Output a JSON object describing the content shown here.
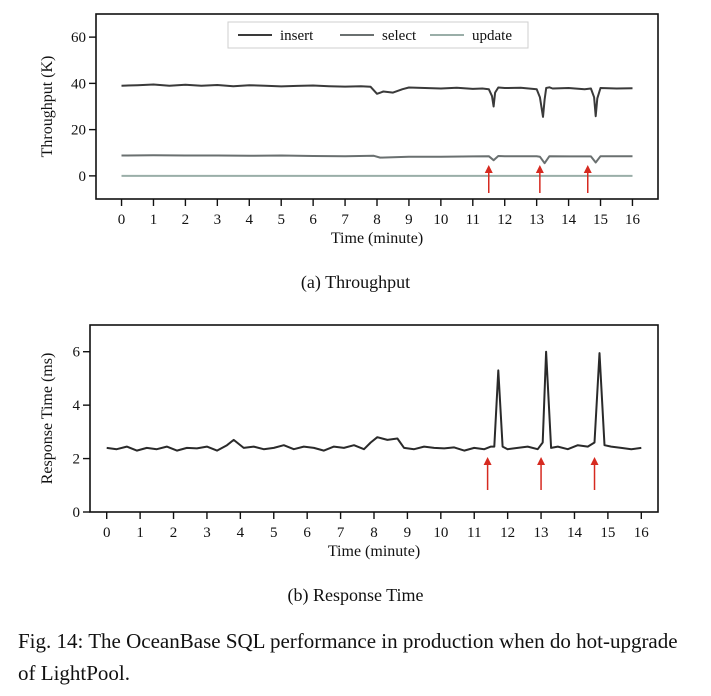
{
  "chart_data": [
    {
      "type": "line",
      "title": "",
      "subtitle": "(a) Throughput",
      "xlabel": "Time (minute)",
      "ylabel": "Throughput (K)",
      "xlim": [
        -0.8,
        16.8
      ],
      "ylim": [
        -10,
        70
      ],
      "x_ticks": [
        0,
        1,
        2,
        3,
        4,
        5,
        6,
        7,
        8,
        9,
        10,
        11,
        12,
        13,
        14,
        15,
        16
      ],
      "y_ticks": [
        0,
        20,
        40,
        60
      ],
      "legend": [
        "insert",
        "select",
        "update"
      ],
      "legend_position": "top-center",
      "series": [
        {
          "name": "insert",
          "color": "#3a3a3a",
          "x": [
            0,
            0.5,
            1,
            1.5,
            2,
            2.5,
            3,
            3.5,
            4,
            4.5,
            5,
            5.5,
            6,
            6.5,
            7,
            7.5,
            7.8,
            8.0,
            8.2,
            8.5,
            8.8,
            9,
            9.5,
            10,
            10.5,
            11,
            11.3,
            11.5,
            11.6,
            11.65,
            11.7,
            11.8,
            12,
            12.5,
            13,
            13.1,
            13.2,
            13.25,
            13.3,
            13.4,
            13.5,
            14,
            14.5,
            14.7,
            14.8,
            14.85,
            14.9,
            15,
            15.5,
            16
          ],
          "y": [
            39,
            39.2,
            39.5,
            39,
            39.4,
            39,
            39.3,
            38.8,
            39.2,
            39,
            38.7,
            38.9,
            39.1,
            38.8,
            38.6,
            38.8,
            38.5,
            35.5,
            36.5,
            36,
            37.5,
            38.2,
            38,
            37.8,
            38.1,
            37.6,
            37.8,
            37.5,
            34.5,
            30,
            36,
            38.2,
            38,
            38.1,
            37.5,
            34,
            25.5,
            33,
            38,
            38.3,
            37.8,
            38,
            37.5,
            37.8,
            34,
            25.8,
            33.5,
            38,
            37.8,
            37.9
          ]
        },
        {
          "name": "select",
          "color": "#6a7070",
          "x": [
            0,
            1,
            2,
            3,
            4,
            5,
            6,
            7,
            7.9,
            8.1,
            9,
            10,
            11,
            11.5,
            11.65,
            11.8,
            12,
            13,
            13.1,
            13.25,
            13.4,
            14,
            14.7,
            14.85,
            15,
            16
          ],
          "y": [
            8.8,
            8.9,
            8.8,
            8.8,
            8.7,
            8.8,
            8.6,
            8.5,
            8.7,
            7.9,
            8.3,
            8.3,
            8.4,
            8.5,
            6.8,
            8.6,
            8.5,
            8.5,
            8.3,
            5.5,
            8.5,
            8.4,
            8.4,
            5.8,
            8.5,
            8.5
          ]
        },
        {
          "name": "update",
          "color": "#9aaea8",
          "x": [
            0,
            16
          ],
          "y": [
            0,
            0
          ]
        }
      ],
      "annotations": [
        {
          "type": "arrow",
          "x": 11.5,
          "color": "#d62a20"
        },
        {
          "type": "arrow",
          "x": 13.1,
          "color": "#d62a20"
        },
        {
          "type": "arrow",
          "x": 14.6,
          "color": "#d62a20"
        }
      ]
    },
    {
      "type": "line",
      "title": "",
      "subtitle": "(b) Response Time",
      "xlabel": "Time (minute)",
      "ylabel": "Response Time (ms)",
      "xlim": [
        -0.5,
        16.5
      ],
      "ylim": [
        0,
        7
      ],
      "x_ticks": [
        0,
        1,
        2,
        3,
        4,
        5,
        6,
        7,
        8,
        9,
        10,
        11,
        12,
        13,
        14,
        15,
        16
      ],
      "y_ticks": [
        0,
        2,
        4,
        6
      ],
      "series": [
        {
          "name": "response time",
          "color": "#2a2a2a",
          "x": [
            0,
            0.3,
            0.6,
            0.9,
            1.2,
            1.5,
            1.8,
            2.1,
            2.4,
            2.7,
            3.0,
            3.3,
            3.6,
            3.8,
            4.1,
            4.4,
            4.7,
            5.0,
            5.3,
            5.6,
            5.9,
            6.2,
            6.5,
            6.8,
            7.1,
            7.4,
            7.7,
            7.9,
            8.1,
            8.4,
            8.7,
            8.9,
            9.2,
            9.5,
            9.8,
            10.1,
            10.4,
            10.7,
            11.0,
            11.3,
            11.5,
            11.6,
            11.72,
            11.85,
            12.0,
            12.3,
            12.6,
            12.9,
            13.05,
            13.15,
            13.3,
            13.5,
            13.8,
            14.1,
            14.4,
            14.6,
            14.75,
            14.9,
            15.1,
            15.4,
            15.7,
            16
          ],
          "y": [
            2.4,
            2.35,
            2.45,
            2.3,
            2.4,
            2.35,
            2.45,
            2.3,
            2.4,
            2.38,
            2.45,
            2.3,
            2.5,
            2.7,
            2.4,
            2.45,
            2.35,
            2.4,
            2.5,
            2.35,
            2.45,
            2.4,
            2.3,
            2.45,
            2.4,
            2.5,
            2.35,
            2.6,
            2.8,
            2.7,
            2.75,
            2.4,
            2.35,
            2.45,
            2.4,
            2.38,
            2.42,
            2.3,
            2.4,
            2.35,
            2.45,
            2.45,
            5.3,
            2.45,
            2.35,
            2.4,
            2.45,
            2.35,
            2.6,
            6.0,
            2.4,
            2.45,
            2.35,
            2.5,
            2.45,
            2.6,
            5.95,
            2.5,
            2.45,
            2.4,
            2.35,
            2.4
          ]
        }
      ],
      "annotations": [
        {
          "type": "arrow",
          "x": 11.4,
          "color": "#d62a20"
        },
        {
          "type": "arrow",
          "x": 13.0,
          "color": "#d62a20"
        },
        {
          "type": "arrow",
          "x": 14.6,
          "color": "#d62a20"
        }
      ]
    }
  ],
  "figure": {
    "caption": "Fig. 14: The OceanBase SQL performance in production when do hot-upgrade of LightPool."
  }
}
